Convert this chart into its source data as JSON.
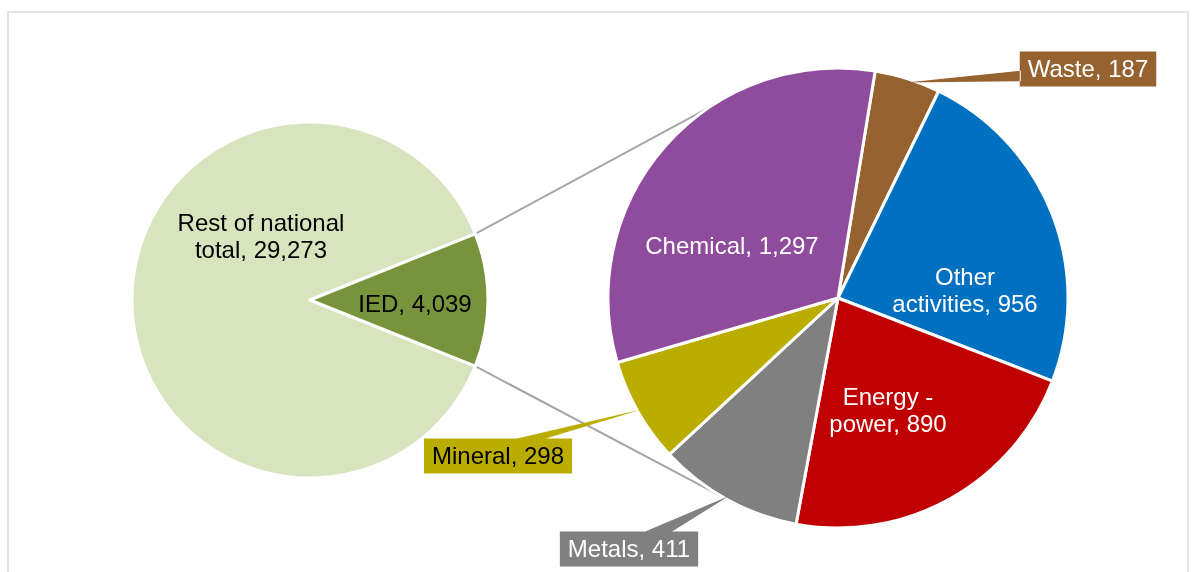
{
  "chart_data": [
    {
      "type": "pie",
      "categories": [
        "Rest of national total",
        "IED"
      ],
      "values": [
        29273,
        4039
      ],
      "value_labels": [
        "29,273",
        "4,039"
      ],
      "colors": [
        "#d7e4bd",
        "#77933c"
      ]
    },
    {
      "type": "pie",
      "categories": [
        "Waste",
        "Other activities",
        "Energy - power",
        "Metals",
        "Mineral",
        "Chemical"
      ],
      "values": [
        187,
        956,
        890,
        411,
        298,
        1297
      ],
      "value_labels": [
        "187",
        "956",
        "890",
        "411",
        "298",
        "1,297"
      ],
      "colors": [
        "#956230",
        "#0070c0",
        "#c00000",
        "#808080",
        "#bbad00",
        "#904c9c"
      ]
    }
  ]
}
